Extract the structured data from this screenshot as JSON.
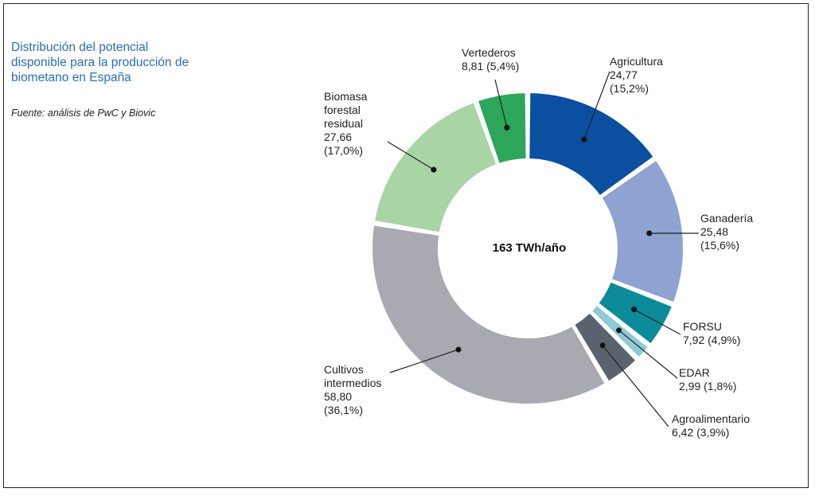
{
  "title": "Distribución del potencial disponible para la producción de biometano en España",
  "source": "Fuente: análisis de PwC y Biovic",
  "chart_data": {
    "type": "pie",
    "center_label": "163 TWh/año",
    "slices": [
      {
        "name": "Agricultura",
        "value": 24.77,
        "value_label": "24,77",
        "pct_label": "(15,2%)",
        "color": "#0b4fa1"
      },
      {
        "name": "Ganadería",
        "value": 25.48,
        "value_label": "25,48",
        "pct_label": "(15,6%)",
        "color": "#8ea3d1"
      },
      {
        "name": "FORSU",
        "value": 7.92,
        "value_label": "7,92",
        "pct_label": "(4,9%)",
        "color": "#0b8a99"
      },
      {
        "name": "EDAR",
        "value": 2.99,
        "value_label": "2,99",
        "pct_label": "(1,8%)",
        "color": "#8ecad6"
      },
      {
        "name": "Agroalimentario",
        "value": 6.42,
        "value_label": "6,42",
        "pct_label": "(3,9%)",
        "color": "#5a636d"
      },
      {
        "name": "Cultivos intermedios",
        "value": 58.8,
        "value_label": "58,80",
        "pct_label": "(36,1%)",
        "color": "#a9a9b2"
      },
      {
        "name": "Biomasa forestal residual",
        "value": 27.66,
        "value_label": "27,66",
        "pct_label": "(17,0%)",
        "color": "#a9d4a6"
      },
      {
        "name": "Vertederos",
        "value": 8.81,
        "value_label": "8,81",
        "pct_label": "(5,4%)",
        "color": "#2ba65a"
      }
    ]
  }
}
